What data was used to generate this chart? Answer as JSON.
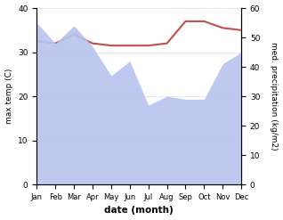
{
  "months": [
    1,
    2,
    3,
    4,
    5,
    6,
    7,
    8,
    9,
    10,
    11,
    12
  ],
  "month_labels": [
    "Jan",
    "Feb",
    "Mar",
    "Apr",
    "May",
    "Jun",
    "Jul",
    "Aug",
    "Sep",
    "Oct",
    "Nov",
    "Dec"
  ],
  "temp": [
    32.5,
    32.0,
    34.0,
    32.0,
    31.5,
    31.5,
    31.5,
    32.0,
    37.0,
    37.0,
    35.5,
    35.0
  ],
  "precip": [
    55.0,
    48.0,
    54.0,
    47.0,
    37.0,
    42.0,
    27.0,
    30.0,
    29.0,
    29.0,
    41.0,
    45.0
  ],
  "temp_color": "#c0504d",
  "precip_color": "#b8c4ee",
  "temp_ylim": [
    0,
    40
  ],
  "precip_ylim": [
    0,
    60
  ],
  "temp_yticks": [
    0,
    10,
    20,
    30,
    40
  ],
  "precip_yticks": [
    0,
    10,
    20,
    30,
    40,
    50,
    60
  ],
  "ylabel_left": "max temp (C)",
  "ylabel_right": "med. precipitation (kg/m2)",
  "xlabel": "date (month)",
  "figsize": [
    3.18,
    2.47
  ],
  "dpi": 100
}
